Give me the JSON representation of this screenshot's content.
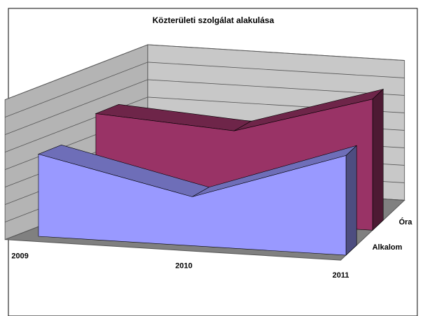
{
  "chart_data": {
    "type": "area3d",
    "title": "Közterületi szolgálat alakulása",
    "categories": [
      "2009",
      "2010",
      "2011"
    ],
    "series": [
      {
        "name": "Alkalom",
        "color": "#9999ff",
        "values": [
          4.7,
          2.8,
          5.7
        ]
      },
      {
        "name": "Óra",
        "color": "#993366",
        "values": [
          5.7,
          5.2,
          7.5
        ]
      }
    ],
    "ylim": [
      0,
      8
    ],
    "yticks": [
      0,
      1,
      2,
      3,
      4,
      5,
      6,
      7,
      8
    ],
    "grid": true
  }
}
